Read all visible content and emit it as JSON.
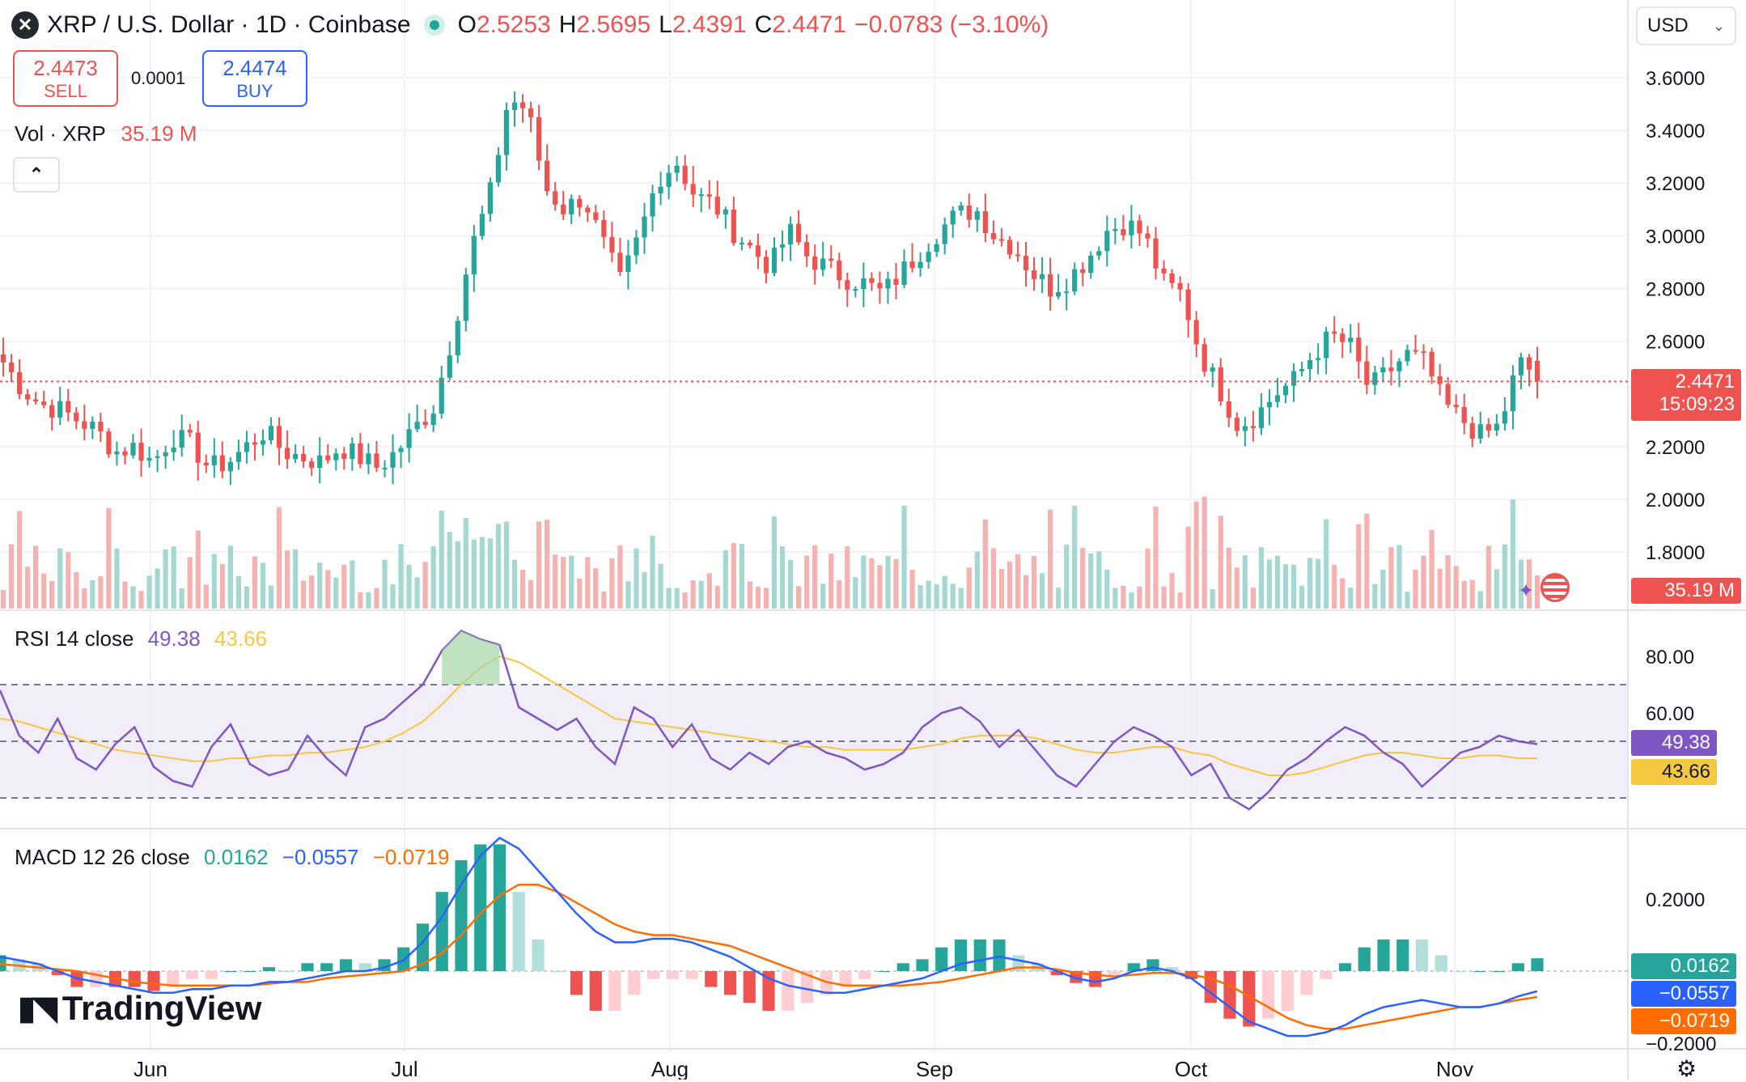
{
  "header": {
    "symbol": "XRP / U.S. Dollar · 1D · Coinbase",
    "open_label": "O",
    "open": "2.5253",
    "high_label": "H",
    "high": "2.5695",
    "low_label": "L",
    "low": "2.4391",
    "close_label": "C",
    "close": "2.4471",
    "change": "−0.0783 (−3.10%)",
    "currency": "USD"
  },
  "trade": {
    "sell_price": "2.4473",
    "sell_label": "SELL",
    "spread": "0.0001",
    "buy_price": "2.4474",
    "buy_label": "BUY"
  },
  "volume_legend": {
    "label": "Vol · XRP",
    "value": "35.19 M"
  },
  "rsi_legend": {
    "label": "RSI 14 close",
    "rsi": "49.38",
    "ma": "43.66"
  },
  "macd_legend": {
    "label": "MACD 12 26 close",
    "hist": "0.0162",
    "macd": "−0.0557",
    "signal": "−0.0719"
  },
  "price_tags": {
    "last": "2.4471",
    "countdown": "15:09:23",
    "volume": "35.19 M",
    "rsi": "49.38",
    "rsi_ma": "43.66",
    "macd_hist": "0.0162",
    "macd": "−0.0557",
    "macd_signal": "−0.0719"
  },
  "brand": "TradingView",
  "colors": {
    "up": "#26a69a",
    "down": "#ef5350",
    "rsi": "#7e57c2",
    "rsi_ma": "#f5c842",
    "macd": "#2962ff",
    "signal": "#ff6d00"
  },
  "chart_data": {
    "type": "candlestick",
    "x_ticks": [
      "Jun",
      "Jul",
      "Aug",
      "Sep",
      "Oct",
      "Nov"
    ],
    "price_axis": {
      "ticks": [
        "3.6000",
        "3.4000",
        "3.2000",
        "3.0000",
        "2.8000",
        "2.6000",
        "2.2000",
        "2.0000",
        "1.8000"
      ],
      "range": [
        1.8,
        3.7
      ]
    },
    "price_anchors": [
      2.52,
      2.42,
      2.36,
      2.34,
      2.3,
      2.26,
      2.18,
      2.2,
      2.14,
      2.24,
      2.21,
      2.12,
      2.14,
      2.2,
      2.26,
      2.18,
      2.16,
      2.14,
      2.2,
      2.16,
      2.12,
      2.18,
      2.27,
      2.35,
      2.62,
      2.95,
      3.15,
      3.52,
      3.48,
      3.18,
      3.1,
      3.15,
      2.98,
      2.82,
      3.0,
      3.22,
      3.28,
      3.15,
      3.12,
      3.02,
      2.95,
      2.88,
      3.02,
      2.92,
      2.88,
      2.84,
      2.82,
      2.78,
      2.86,
      2.94,
      3.02,
      3.08,
      3.1,
      3.0,
      2.96,
      2.86,
      2.8,
      2.84,
      2.92,
      3.02,
      3.05,
      3.0,
      2.82,
      2.78,
      2.55,
      2.42,
      2.28,
      2.32,
      2.4,
      2.45,
      2.55,
      2.62,
      2.58,
      2.42,
      2.48,
      2.55,
      2.52,
      2.36,
      2.3,
      2.24,
      2.28,
      2.52,
      2.47
    ],
    "rsi_axis": {
      "ticks": [
        "80.00",
        "60.00"
      ],
      "bands": [
        30,
        70
      ]
    },
    "rsi_values": [
      68,
      52,
      46,
      58,
      44,
      40,
      49,
      55,
      41,
      36,
      34,
      48,
      56,
      42,
      38,
      40,
      52,
      44,
      38,
      55,
      58,
      64,
      70,
      82,
      89,
      86,
      84,
      62,
      58,
      54,
      58,
      48,
      42,
      62,
      58,
      48,
      56,
      44,
      40,
      46,
      42,
      48,
      50,
      46,
      44,
      40,
      42,
      46,
      55,
      60,
      62,
      57,
      48,
      54,
      46,
      38,
      34,
      42,
      50,
      55,
      52,
      48,
      38,
      42,
      30,
      26,
      32,
      40,
      44,
      50,
      55,
      52,
      46,
      42,
      34,
      40,
      46,
      48,
      52,
      50,
      49
    ],
    "rsi_ma_values": [
      58,
      57,
      55,
      53,
      51,
      49,
      47,
      46,
      45,
      44,
      43,
      43,
      44,
      44,
      45,
      45,
      46,
      46,
      47,
      48,
      50,
      53,
      57,
      63,
      70,
      76,
      80,
      78,
      74,
      70,
      66,
      62,
      58,
      57,
      56,
      55,
      54,
      53,
      52,
      51,
      50,
      49,
      48,
      48,
      47,
      47,
      47,
      47,
      48,
      49,
      51,
      52,
      52,
      52,
      51,
      49,
      47,
      46,
      46,
      47,
      48,
      48,
      46,
      45,
      42,
      40,
      38,
      38,
      39,
      41,
      43,
      45,
      46,
      46,
      45,
      44,
      44,
      45,
      45,
      44,
      44
    ],
    "macd_axis": {
      "ticks": [
        "0.2000",
        "−0.2000"
      ]
    },
    "macd_values": [
      0.04,
      0.03,
      0.02,
      0.0,
      -0.02,
      -0.03,
      -0.04,
      -0.05,
      -0.06,
      -0.06,
      -0.05,
      -0.05,
      -0.04,
      -0.04,
      -0.03,
      -0.03,
      -0.02,
      -0.01,
      0.0,
      0.0,
      0.01,
      0.03,
      0.08,
      0.15,
      0.24,
      0.32,
      0.37,
      0.34,
      0.28,
      0.22,
      0.16,
      0.11,
      0.08,
      0.08,
      0.09,
      0.09,
      0.08,
      0.06,
      0.04,
      0.01,
      -0.02,
      -0.04,
      -0.05,
      -0.06,
      -0.06,
      -0.05,
      -0.04,
      -0.03,
      -0.02,
      0.0,
      0.02,
      0.03,
      0.04,
      0.03,
      0.02,
      0.0,
      -0.02,
      -0.03,
      -0.02,
      0.0,
      0.01,
      0.0,
      -0.02,
      -0.06,
      -0.1,
      -0.14,
      -0.16,
      -0.18,
      -0.18,
      -0.17,
      -0.15,
      -0.12,
      -0.1,
      -0.09,
      -0.08,
      -0.09,
      -0.1,
      -0.1,
      -0.09,
      -0.07,
      -0.0557
    ],
    "signal_values": [
      0.02,
      0.015,
      0.01,
      0.005,
      -0.0,
      -0.01,
      -0.02,
      -0.03,
      -0.035,
      -0.04,
      -0.04,
      -0.04,
      -0.04,
      -0.04,
      -0.035,
      -0.03,
      -0.03,
      -0.02,
      -0.015,
      -0.01,
      -0.005,
      0.0,
      0.02,
      0.05,
      0.1,
      0.16,
      0.21,
      0.24,
      0.24,
      0.22,
      0.19,
      0.16,
      0.13,
      0.11,
      0.1,
      0.1,
      0.09,
      0.08,
      0.07,
      0.05,
      0.03,
      0.01,
      -0.01,
      -0.03,
      -0.04,
      -0.04,
      -0.04,
      -0.04,
      -0.035,
      -0.03,
      -0.02,
      -0.01,
      0.0,
      0.01,
      0.01,
      0.005,
      -0.005,
      -0.01,
      -0.015,
      -0.01,
      -0.005,
      -0.005,
      -0.01,
      -0.02,
      -0.04,
      -0.07,
      -0.1,
      -0.13,
      -0.15,
      -0.16,
      -0.16,
      -0.15,
      -0.14,
      -0.13,
      -0.12,
      -0.11,
      -0.1,
      -0.1,
      -0.09,
      -0.08,
      -0.0719
    ]
  }
}
